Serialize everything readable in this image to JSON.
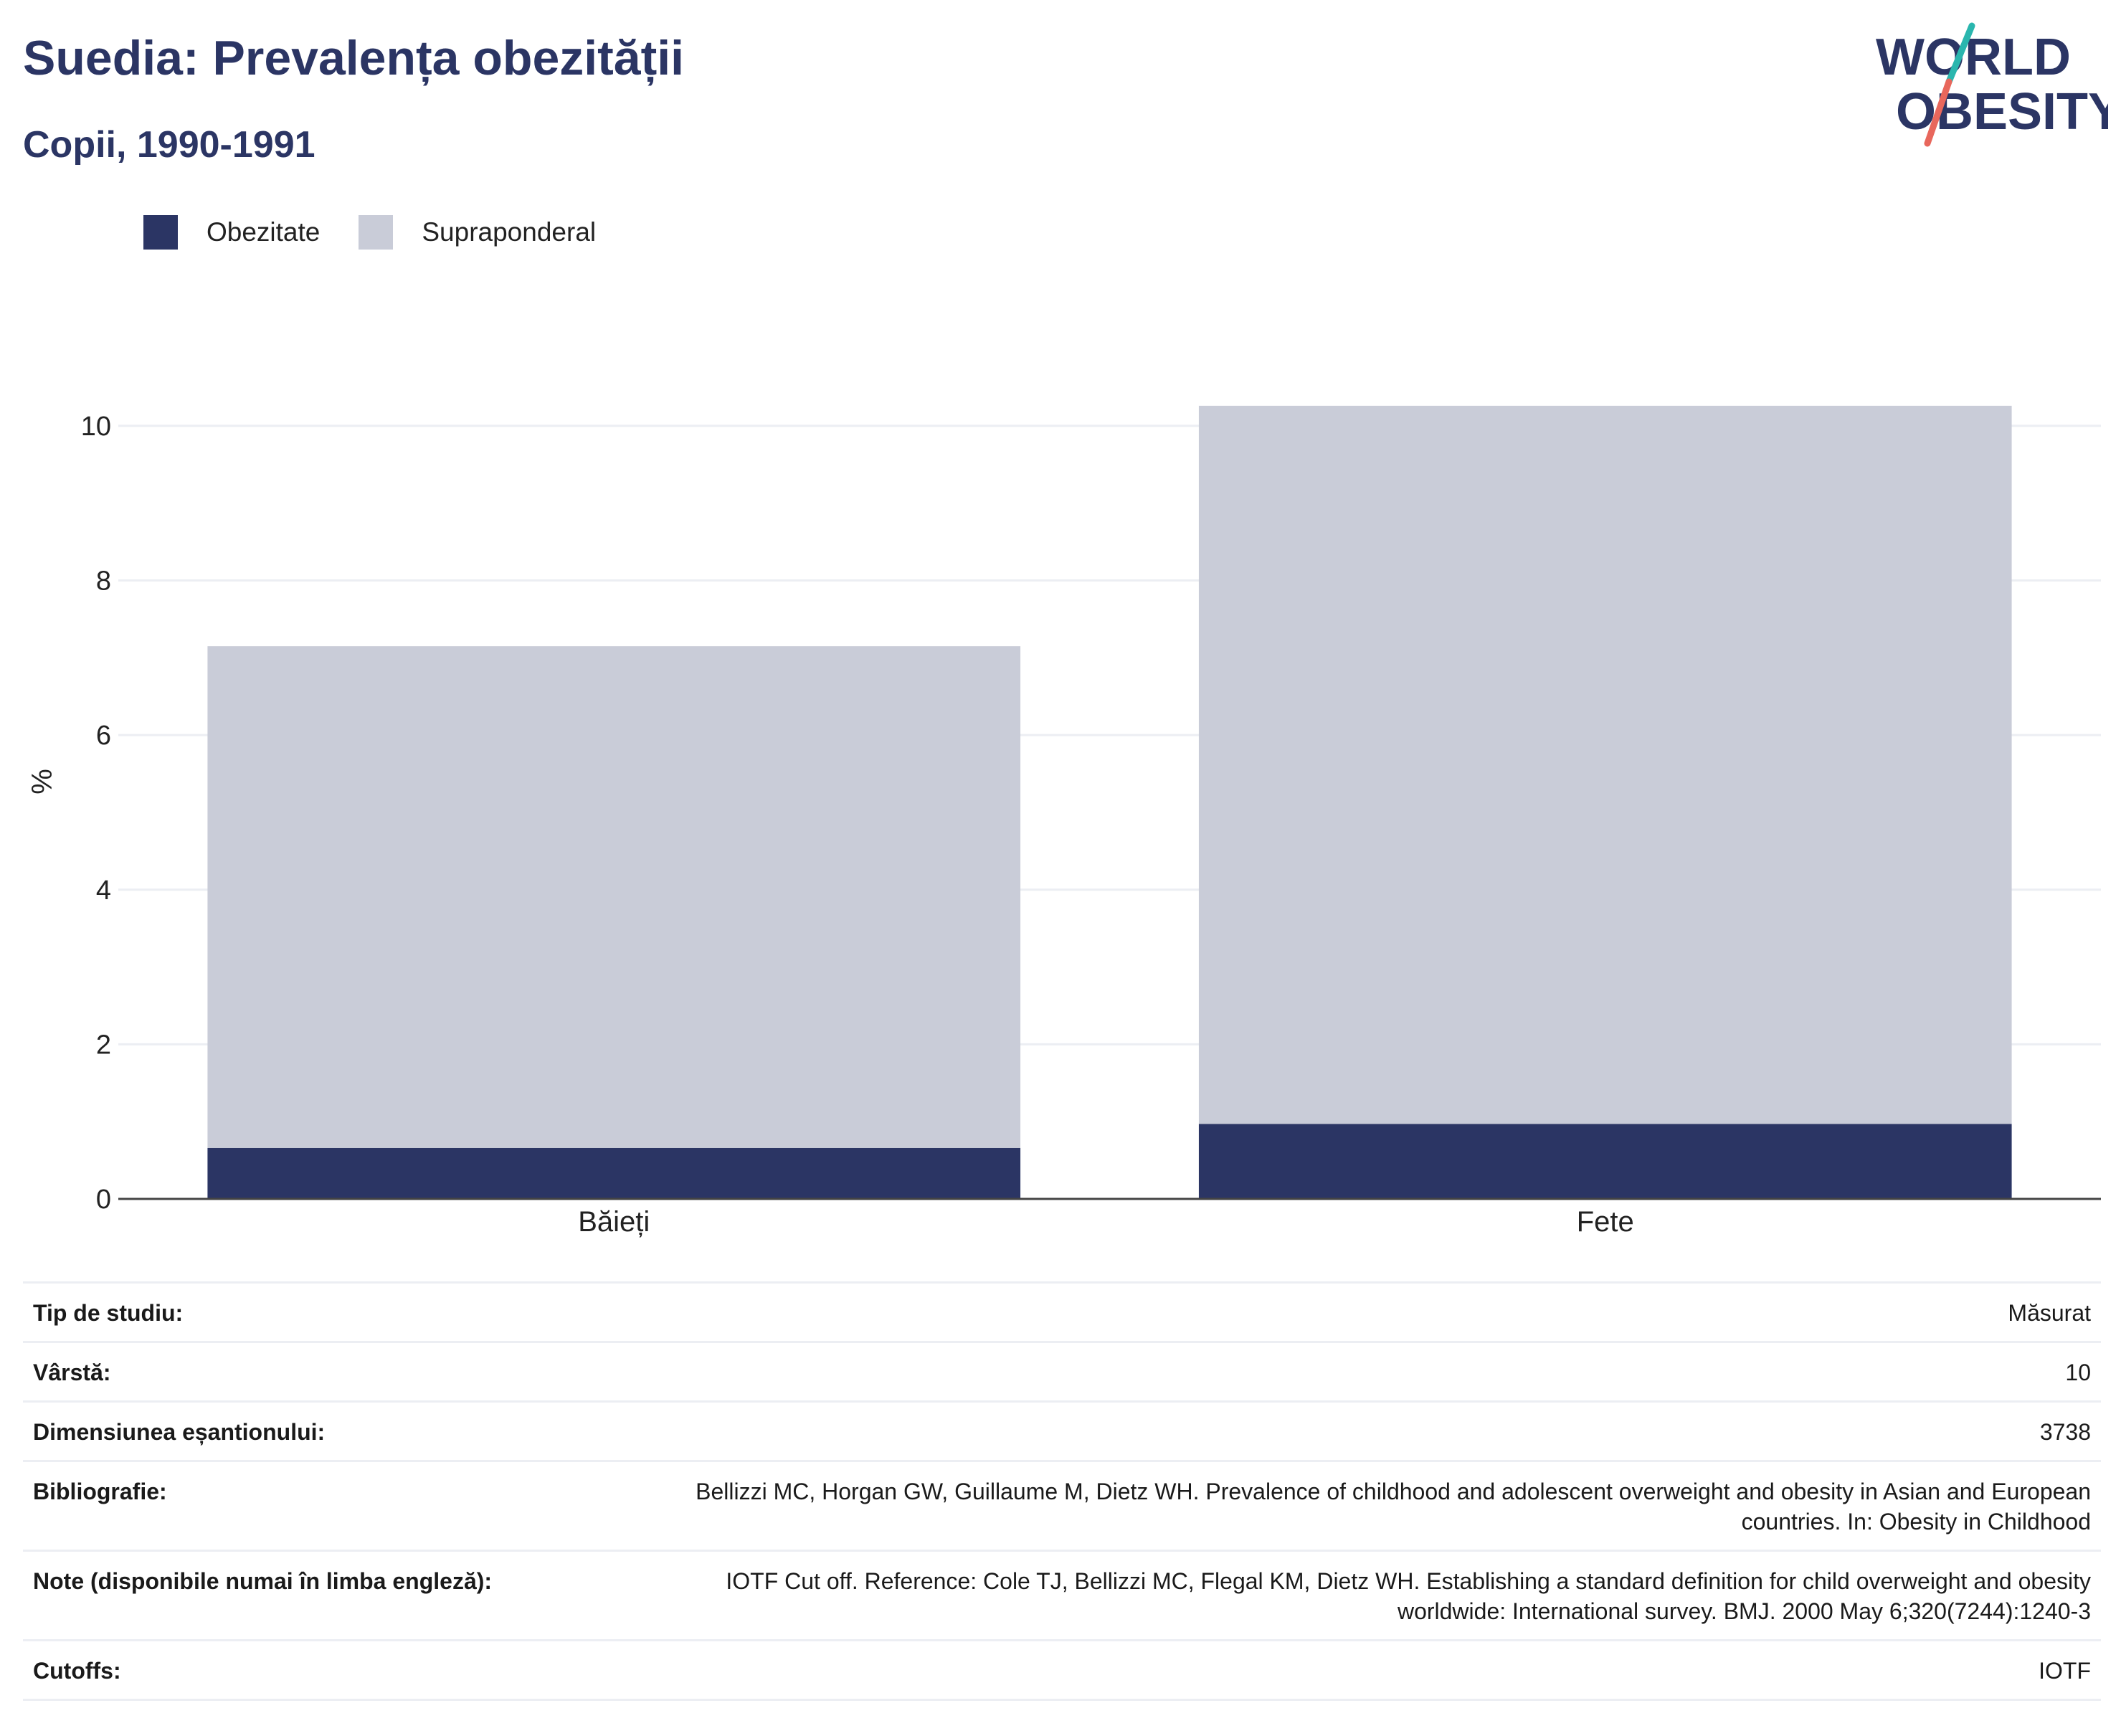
{
  "header": {
    "title": "Suedia: Prevalența obezității",
    "subtitle": "Copii, 1990-1991"
  },
  "logo": {
    "line1": "WORLD",
    "line2": "OBESITY",
    "text_color": "#2b3564",
    "slash_colors": [
      "#2ab6ae",
      "#e8675c"
    ]
  },
  "legend": [
    {
      "label": "Obezitate",
      "color": "#2b3564"
    },
    {
      "label": "Supraponderal",
      "color": "#c9ccd8"
    }
  ],
  "chart_data": {
    "type": "bar",
    "stacked": true,
    "categories": [
      "Băieți",
      "Fete"
    ],
    "series": [
      {
        "name": "Obezitate",
        "color": "#2b3564",
        "values": [
          0.66,
          0.97
        ]
      },
      {
        "name": "Supraponderal",
        "color": "#c9ccd8",
        "values": [
          6.49,
          9.29
        ]
      }
    ],
    "ylabel": "%",
    "ylim": [
      0,
      10.5
    ],
    "yticks": [
      0,
      2,
      4,
      6,
      8,
      10
    ],
    "grid": true,
    "legend_position": "top-left"
  },
  "info": [
    {
      "key": "Tip de studiu:",
      "value": "Măsurat"
    },
    {
      "key": "Vârstă:",
      "value": "10"
    },
    {
      "key": "Dimensiunea eșantionului:",
      "value": "3738"
    },
    {
      "key": "Bibliografie:",
      "value": "Bellizzi MC, Horgan GW, Guillaume M, Dietz WH. Prevalence of childhood and adolescent overweight and obesity in Asian and European countries. In: Obesity in Childhood"
    },
    {
      "key": "Note (disponibile numai în limba engleză):",
      "value": "IOTF Cut off. Reference: Cole TJ, Bellizzi MC, Flegal KM, Dietz WH. Establishing a standard definition for child overweight and obesity worldwide: International survey. BMJ. 2000 May 6;320(7244):1240-3"
    },
    {
      "key": "Cutoffs:",
      "value": "IOTF"
    }
  ]
}
